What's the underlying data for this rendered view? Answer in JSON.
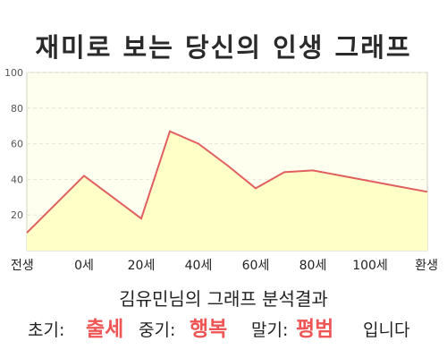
{
  "title": "재미로 보는 당신의 인생 그래프",
  "subtitle": "김유민님의 그래프 분석결과",
  "summary": {
    "early_label": "초기:",
    "early_value": "출세",
    "mid_label": "중기:",
    "mid_value": "행복",
    "late_label": "말기:",
    "late_value": "평범",
    "ending": "입니다"
  },
  "colors": {
    "line": "#e06060",
    "fill": "#ffffc8",
    "plot_bg": "#fffff0",
    "highlight": "#ee5555"
  },
  "chart_data": {
    "type": "area",
    "title": "재미로 보는 당신의 인생 그래프",
    "xlabel": "",
    "ylabel": "",
    "x_tick_labels": [
      "전생",
      "0세",
      "20세",
      "40세",
      "60세",
      "80세",
      "100세",
      "환생"
    ],
    "y_ticks": [
      20,
      40,
      60,
      80,
      100
    ],
    "ylim": [
      0,
      100
    ],
    "xlim": [
      -20,
      120
    ],
    "grid": true,
    "x": [
      -20,
      0,
      20,
      30,
      40,
      50,
      60,
      70,
      80,
      90,
      100,
      110,
      120
    ],
    "values": [
      10,
      42,
      18,
      67,
      60,
      48,
      35,
      44,
      45,
      42,
      39,
      36,
      33
    ]
  }
}
